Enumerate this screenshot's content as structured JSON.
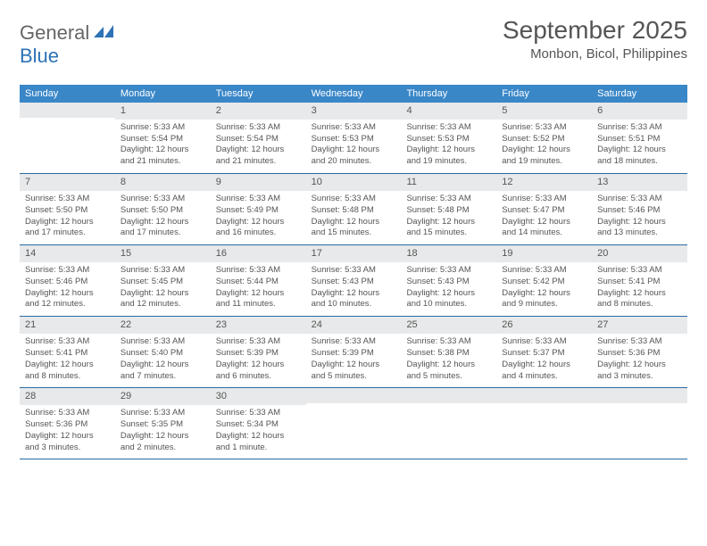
{
  "logo": {
    "general": "General",
    "blue": "Blue"
  },
  "title": "September 2025",
  "location": "Monbon, Bicol, Philippines",
  "colors": {
    "header_bg": "#3a87c8",
    "header_text": "#ffffff",
    "daynum_bg": "#e8e9ea",
    "border": "#2a6aa0",
    "text": "#555555",
    "logo_blue": "#2d72b5"
  },
  "weekdays": [
    "Sunday",
    "Monday",
    "Tuesday",
    "Wednesday",
    "Thursday",
    "Friday",
    "Saturday"
  ],
  "weeks": [
    [
      {
        "empty": true
      },
      {
        "n": "1",
        "sunrise": "Sunrise: 5:33 AM",
        "sunset": "Sunset: 5:54 PM",
        "day1": "Daylight: 12 hours",
        "day2": "and 21 minutes."
      },
      {
        "n": "2",
        "sunrise": "Sunrise: 5:33 AM",
        "sunset": "Sunset: 5:54 PM",
        "day1": "Daylight: 12 hours",
        "day2": "and 21 minutes."
      },
      {
        "n": "3",
        "sunrise": "Sunrise: 5:33 AM",
        "sunset": "Sunset: 5:53 PM",
        "day1": "Daylight: 12 hours",
        "day2": "and 20 minutes."
      },
      {
        "n": "4",
        "sunrise": "Sunrise: 5:33 AM",
        "sunset": "Sunset: 5:53 PM",
        "day1": "Daylight: 12 hours",
        "day2": "and 19 minutes."
      },
      {
        "n": "5",
        "sunrise": "Sunrise: 5:33 AM",
        "sunset": "Sunset: 5:52 PM",
        "day1": "Daylight: 12 hours",
        "day2": "and 19 minutes."
      },
      {
        "n": "6",
        "sunrise": "Sunrise: 5:33 AM",
        "sunset": "Sunset: 5:51 PM",
        "day1": "Daylight: 12 hours",
        "day2": "and 18 minutes."
      }
    ],
    [
      {
        "n": "7",
        "sunrise": "Sunrise: 5:33 AM",
        "sunset": "Sunset: 5:50 PM",
        "day1": "Daylight: 12 hours",
        "day2": "and 17 minutes."
      },
      {
        "n": "8",
        "sunrise": "Sunrise: 5:33 AM",
        "sunset": "Sunset: 5:50 PM",
        "day1": "Daylight: 12 hours",
        "day2": "and 17 minutes."
      },
      {
        "n": "9",
        "sunrise": "Sunrise: 5:33 AM",
        "sunset": "Sunset: 5:49 PM",
        "day1": "Daylight: 12 hours",
        "day2": "and 16 minutes."
      },
      {
        "n": "10",
        "sunrise": "Sunrise: 5:33 AM",
        "sunset": "Sunset: 5:48 PM",
        "day1": "Daylight: 12 hours",
        "day2": "and 15 minutes."
      },
      {
        "n": "11",
        "sunrise": "Sunrise: 5:33 AM",
        "sunset": "Sunset: 5:48 PM",
        "day1": "Daylight: 12 hours",
        "day2": "and 15 minutes."
      },
      {
        "n": "12",
        "sunrise": "Sunrise: 5:33 AM",
        "sunset": "Sunset: 5:47 PM",
        "day1": "Daylight: 12 hours",
        "day2": "and 14 minutes."
      },
      {
        "n": "13",
        "sunrise": "Sunrise: 5:33 AM",
        "sunset": "Sunset: 5:46 PM",
        "day1": "Daylight: 12 hours",
        "day2": "and 13 minutes."
      }
    ],
    [
      {
        "n": "14",
        "sunrise": "Sunrise: 5:33 AM",
        "sunset": "Sunset: 5:46 PM",
        "day1": "Daylight: 12 hours",
        "day2": "and 12 minutes."
      },
      {
        "n": "15",
        "sunrise": "Sunrise: 5:33 AM",
        "sunset": "Sunset: 5:45 PM",
        "day1": "Daylight: 12 hours",
        "day2": "and 12 minutes."
      },
      {
        "n": "16",
        "sunrise": "Sunrise: 5:33 AM",
        "sunset": "Sunset: 5:44 PM",
        "day1": "Daylight: 12 hours",
        "day2": "and 11 minutes."
      },
      {
        "n": "17",
        "sunrise": "Sunrise: 5:33 AM",
        "sunset": "Sunset: 5:43 PM",
        "day1": "Daylight: 12 hours",
        "day2": "and 10 minutes."
      },
      {
        "n": "18",
        "sunrise": "Sunrise: 5:33 AM",
        "sunset": "Sunset: 5:43 PM",
        "day1": "Daylight: 12 hours",
        "day2": "and 10 minutes."
      },
      {
        "n": "19",
        "sunrise": "Sunrise: 5:33 AM",
        "sunset": "Sunset: 5:42 PM",
        "day1": "Daylight: 12 hours",
        "day2": "and 9 minutes."
      },
      {
        "n": "20",
        "sunrise": "Sunrise: 5:33 AM",
        "sunset": "Sunset: 5:41 PM",
        "day1": "Daylight: 12 hours",
        "day2": "and 8 minutes."
      }
    ],
    [
      {
        "n": "21",
        "sunrise": "Sunrise: 5:33 AM",
        "sunset": "Sunset: 5:41 PM",
        "day1": "Daylight: 12 hours",
        "day2": "and 8 minutes."
      },
      {
        "n": "22",
        "sunrise": "Sunrise: 5:33 AM",
        "sunset": "Sunset: 5:40 PM",
        "day1": "Daylight: 12 hours",
        "day2": "and 7 minutes."
      },
      {
        "n": "23",
        "sunrise": "Sunrise: 5:33 AM",
        "sunset": "Sunset: 5:39 PM",
        "day1": "Daylight: 12 hours",
        "day2": "and 6 minutes."
      },
      {
        "n": "24",
        "sunrise": "Sunrise: 5:33 AM",
        "sunset": "Sunset: 5:39 PM",
        "day1": "Daylight: 12 hours",
        "day2": "and 5 minutes."
      },
      {
        "n": "25",
        "sunrise": "Sunrise: 5:33 AM",
        "sunset": "Sunset: 5:38 PM",
        "day1": "Daylight: 12 hours",
        "day2": "and 5 minutes."
      },
      {
        "n": "26",
        "sunrise": "Sunrise: 5:33 AM",
        "sunset": "Sunset: 5:37 PM",
        "day1": "Daylight: 12 hours",
        "day2": "and 4 minutes."
      },
      {
        "n": "27",
        "sunrise": "Sunrise: 5:33 AM",
        "sunset": "Sunset: 5:36 PM",
        "day1": "Daylight: 12 hours",
        "day2": "and 3 minutes."
      }
    ],
    [
      {
        "n": "28",
        "sunrise": "Sunrise: 5:33 AM",
        "sunset": "Sunset: 5:36 PM",
        "day1": "Daylight: 12 hours",
        "day2": "and 3 minutes."
      },
      {
        "n": "29",
        "sunrise": "Sunrise: 5:33 AM",
        "sunset": "Sunset: 5:35 PM",
        "day1": "Daylight: 12 hours",
        "day2": "and 2 minutes."
      },
      {
        "n": "30",
        "sunrise": "Sunrise: 5:33 AM",
        "sunset": "Sunset: 5:34 PM",
        "day1": "Daylight: 12 hours",
        "day2": "and 1 minute."
      },
      {
        "empty": true
      },
      {
        "empty": true
      },
      {
        "empty": true
      },
      {
        "empty": true
      }
    ]
  ]
}
